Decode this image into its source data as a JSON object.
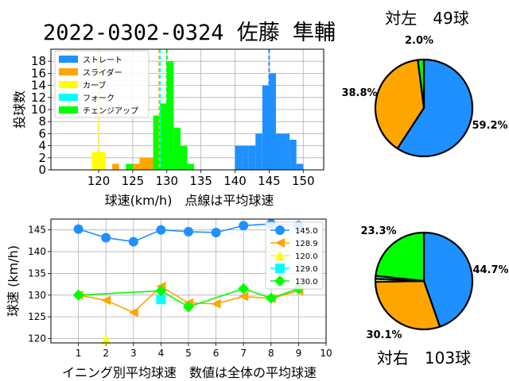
{
  "title": "2022-0302-0324 佐藤 隼輔",
  "colors": {
    "straight": "#1e90ff",
    "slider": "#ffa500",
    "curve": "#ffff00",
    "fork": "#00ffff",
    "changeup": "#00ff00"
  },
  "chart_data": [
    {
      "type": "bar",
      "name": "velocity-histogram",
      "xlabel": "球速(km/h)　点線は平均球速",
      "ylabel": "投球数",
      "xlim": [
        113,
        153
      ],
      "ylim": [
        0,
        20
      ],
      "xticks": [
        120,
        125,
        130,
        135,
        140,
        145,
        150
      ],
      "yticks": [
        0,
        2,
        4,
        6,
        8,
        10,
        12,
        14,
        16,
        18
      ],
      "grid": true,
      "legend": "top-left",
      "series": [
        {
          "name": "ストレート",
          "key": "straight",
          "mean": 145.0,
          "bins": [
            [
              140,
              4
            ],
            [
              141,
              4
            ],
            [
              142,
              4
            ],
            [
              143,
              6
            ],
            [
              144,
              14
            ],
            [
              145,
              16
            ],
            [
              146,
              6
            ],
            [
              147,
              6
            ],
            [
              148,
              5
            ],
            [
              149,
              1
            ]
          ]
        },
        {
          "name": "スライダー",
          "key": "slider",
          "mean": 128.9,
          "bins": [
            [
              120,
              2
            ],
            [
              122,
              1
            ],
            [
              125,
              1
            ],
            [
              126,
              2
            ],
            [
              127,
              2
            ],
            [
              128,
              6
            ],
            [
              129,
              6
            ],
            [
              130,
              3
            ],
            [
              131,
              1
            ]
          ]
        },
        {
          "name": "カーブ",
          "key": "curve",
          "mean": 120.0,
          "bins": [
            [
              119,
              3
            ],
            [
              120,
              3
            ]
          ]
        },
        {
          "name": "フォーク",
          "key": "fork",
          "mean": 129.0,
          "bins": [
            [
              129,
              1
            ]
          ]
        },
        {
          "name": "チェンジアップ",
          "key": "changeup",
          "mean": 130.0,
          "bins": [
            [
              124,
              1
            ],
            [
              128,
              9
            ],
            [
              129,
              11
            ],
            [
              130,
              18
            ],
            [
              131,
              7
            ],
            [
              132,
              4
            ],
            [
              133,
              1
            ]
          ]
        }
      ]
    },
    {
      "type": "line",
      "name": "inning-average",
      "xlabel": "イニング別平均球速　数値は全体の平均球速",
      "ylabel": "球速 (km/h)",
      "xlim": [
        0,
        10
      ],
      "ylim": [
        119,
        147.5
      ],
      "xticks": [
        1,
        2,
        3,
        4,
        5,
        6,
        7,
        8,
        9,
        10
      ],
      "yticks": [
        120,
        125,
        130,
        135,
        140,
        145
      ],
      "grid": true,
      "legend": "right",
      "series": [
        {
          "name": "145.0",
          "key": "straight",
          "marker": "circle",
          "points": [
            [
              1,
              145.2
            ],
            [
              2,
              143.2
            ],
            [
              3,
              142.3
            ],
            [
              4,
              145.0
            ],
            [
              5,
              144.6
            ],
            [
              6,
              144.4
            ],
            [
              7,
              146.0
            ],
            [
              8,
              146.4
            ],
            [
              9,
              146.0
            ]
          ]
        },
        {
          "name": "128.9",
          "key": "slider",
          "marker": "triangle-left",
          "points": [
            [
              1,
              130.0
            ],
            [
              2,
              128.8
            ],
            [
              3,
              126.0
            ],
            [
              4,
              132.0
            ],
            [
              5,
              128.2
            ],
            [
              6,
              128.0
            ],
            [
              7,
              129.7
            ],
            [
              8,
              129.2
            ],
            [
              9,
              131.0
            ]
          ]
        },
        {
          "name": "120.0",
          "key": "curve",
          "marker": "triangle-up",
          "points": [
            [
              2,
              119.8
            ]
          ]
        },
        {
          "name": "129.0",
          "key": "fork",
          "marker": "square",
          "points": [
            [
              4,
              129.0
            ]
          ]
        },
        {
          "name": "130.0",
          "key": "changeup",
          "marker": "diamond",
          "points": [
            [
              1,
              130.0
            ],
            [
              4,
              131.0
            ],
            [
              5,
              127.3
            ],
            [
              7,
              131.5
            ],
            [
              8,
              129.3
            ],
            [
              9,
              131.5
            ]
          ]
        }
      ]
    },
    {
      "type": "pie",
      "name": "vs-left",
      "title": "対左　49球",
      "slices": [
        {
          "key": "straight",
          "value": 59.2,
          "label": "59.2%"
        },
        {
          "key": "slider",
          "value": 38.8,
          "label": "38.8%"
        },
        {
          "key": "changeup",
          "value": 2.0,
          "label": "2.0%"
        }
      ]
    },
    {
      "type": "pie",
      "name": "vs-right",
      "title": "対右　103球",
      "slices": [
        {
          "key": "straight",
          "value": 44.7,
          "label": "44.7%"
        },
        {
          "key": "slider",
          "value": 30.1,
          "label": "30.1%"
        },
        {
          "key": "curve",
          "value": 1.0,
          "label": ""
        },
        {
          "key": "fork",
          "value": 1.0,
          "label": ""
        },
        {
          "key": "changeup",
          "value": 23.3,
          "label": "23.3%"
        }
      ]
    }
  ]
}
